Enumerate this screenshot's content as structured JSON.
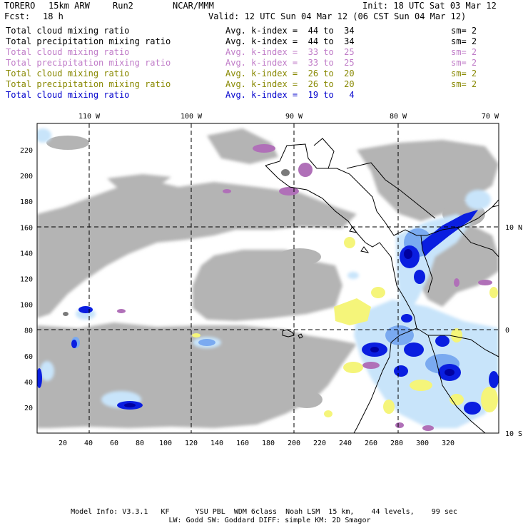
{
  "header": {
    "model_name": "TORERO",
    "resolution": "15km ARW",
    "run": "Run2",
    "org": "NCAR/MMM",
    "init_label": "Init: 18 UTC Sat 03 Mar 12",
    "fcst_label": "Fcst:",
    "fcst_value": "18 h",
    "valid_label": "Valid: 12 UTC Sun 04 Mar 12 (06 CST Sun 04 Mar 12)"
  },
  "legend": [
    {
      "label": "Total cloud mixing ratio",
      "avg": "Avg. k-index =  44 to  34",
      "sm": "sm= 2",
      "color": "#000000"
    },
    {
      "label": "Total precipitation mixing ratio",
      "avg": "Avg. k-index =  44 to  34",
      "sm": "sm= 2",
      "color": "#000000"
    },
    {
      "label": "Total cloud mixing ratio",
      "avg": "Avg. k-index =  33 to  25",
      "sm": "sm= 2",
      "color": "#c07cc8"
    },
    {
      "label": "Total precipitation mixing ratio",
      "avg": "Avg. k-index =  33 to  25",
      "sm": "sm= 2",
      "color": "#c07cc8"
    },
    {
      "label": "Total cloud mixing ratio",
      "avg": "Avg. k-index =  26 to  20",
      "sm": "sm= 2",
      "color": "#888800"
    },
    {
      "label": "Total precipitation mixing ratio",
      "avg": "Avg. k-index =  26 to  20",
      "sm": "sm= 2",
      "color": "#888800"
    },
    {
      "label": "Total cloud mixing ratio",
      "avg": "Avg. k-index =  19 to   4",
      "sm": "",
      "color": "#0000cc"
    }
  ],
  "map": {
    "lon_labels": [
      "110 W",
      "100 W",
      "90 W",
      "80 W",
      "70 W"
    ],
    "lat_labels": [
      "10 N",
      "0",
      "10 S"
    ],
    "y_ticks": [
      "20",
      "40",
      "60",
      "80",
      "100",
      "120",
      "140",
      "160",
      "180",
      "200",
      "220"
    ],
    "x_ticks": [
      "20",
      "40",
      "60",
      "80",
      "100",
      "120",
      "140",
      "160",
      "180",
      "200",
      "220",
      "240",
      "260",
      "280",
      "300",
      "320"
    ],
    "colors": {
      "gray_cloud": "#b4b4b4",
      "dark_gray": "#7a7a7a",
      "purple": "#b070b8",
      "yellow": "#f5f57a",
      "light_blue": "#c8e4fa",
      "mid_blue": "#7aaaf0",
      "blue": "#0a1ee0",
      "dark_blue": "#0000a0"
    }
  },
  "footer": {
    "line1": "Model Info: V3.3.1   KF      YSU PBL  WDM 6class  Noah LSM  15 km,    44 levels,    99 sec",
    "line2": "LW: Godd SW: Goddard DIFF: simple KM: 2D Smagor"
  }
}
